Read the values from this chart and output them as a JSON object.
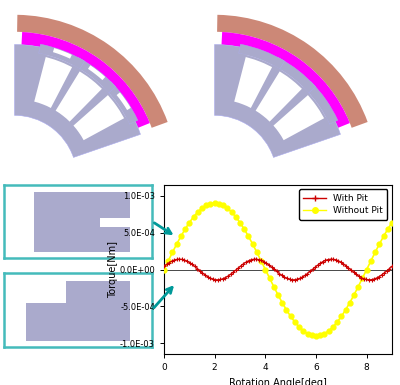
{
  "ylabel": "Torque[Nm]",
  "xlabel": "Rotation Angle[deg]",
  "ylim": [
    -0.00115,
    0.00115
  ],
  "xlim": [
    0,
    9
  ],
  "yticks": [
    -0.001,
    -0.0005,
    0.0,
    0.0005,
    0.001
  ],
  "ytick_labels": [
    "-1.0E-03",
    "-5.0E-04",
    "0.0E+00",
    "5.0E-04",
    "1.0E-03"
  ],
  "xticks": [
    0,
    2,
    4,
    6,
    8
  ],
  "with_pit_color": "#cc0000",
  "without_pit_color": "#ffff00",
  "arrow_color": "#009999",
  "motor_color_main": "#aaaacc",
  "motor_color_magnet": "#ff00ff",
  "motor_color_outer": "#cc8877",
  "tooth_box_border": "#44bbbb",
  "bg_color": "#ffffff",
  "motor_edge_color": "#aaaaee",
  "slot_color": "#ffffff"
}
